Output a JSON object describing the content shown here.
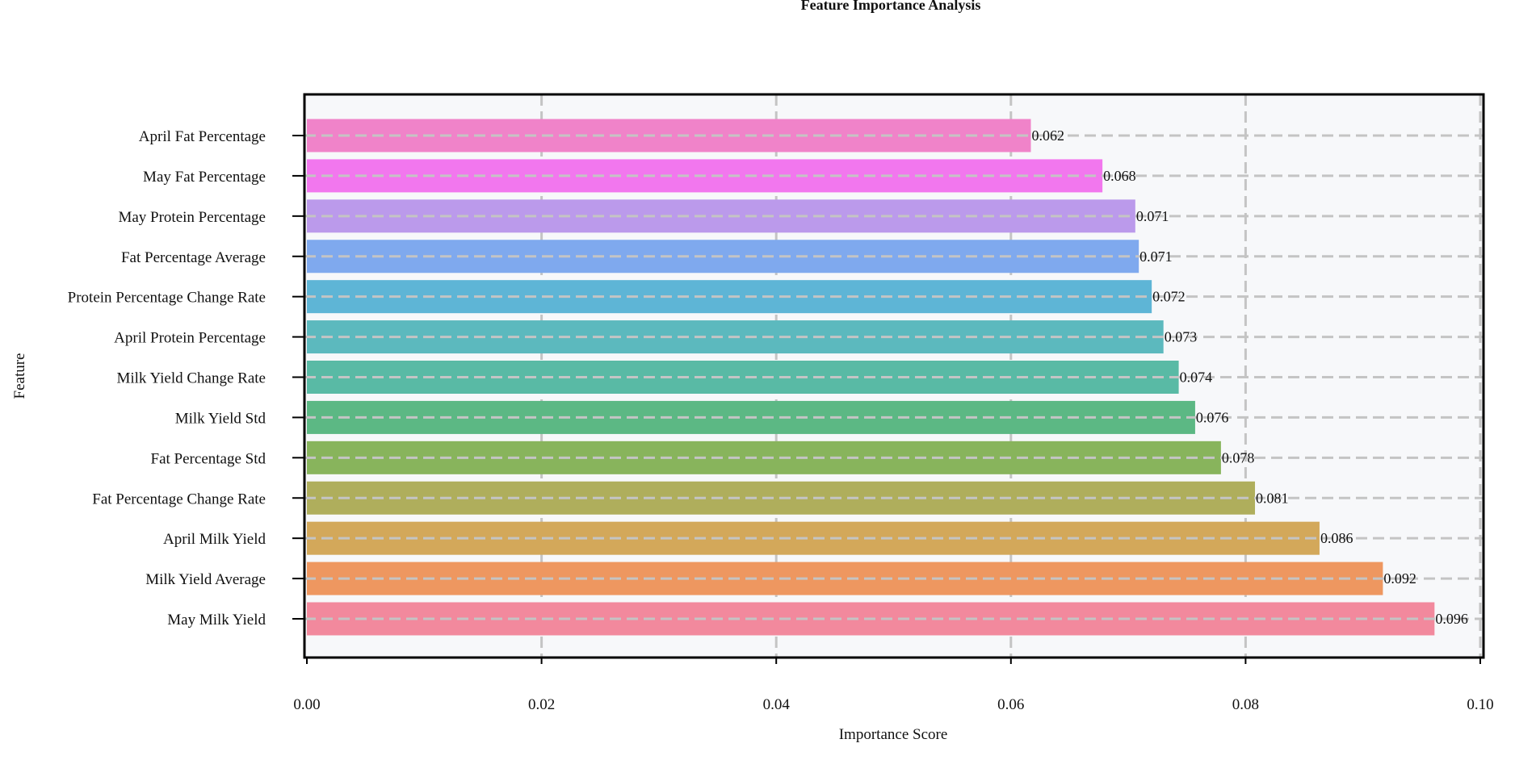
{
  "chart_data": {
    "type": "bar",
    "orientation": "horizontal",
    "title": "Feature Importance Analysis",
    "xlabel": "Importance Score",
    "ylabel": "Feature",
    "xlim": [
      0,
      0.1
    ],
    "xticks": [
      "0.00",
      "0.02",
      "0.04",
      "0.06",
      "0.08",
      "0.10"
    ],
    "grid": true,
    "categories": [
      "April Fat Percentage",
      "May Fat Percentage",
      "May Protein Percentage",
      "Fat Percentage Average",
      "Protein Percentage Change Rate",
      "April Protein Percentage",
      "Milk Yield Change Rate",
      "Milk Yield Std",
      "Fat Percentage Std",
      "Fat Percentage Change Rate",
      "April Milk Yield",
      "Milk Yield Average",
      "May Milk Yield"
    ],
    "values": [
      0.0617,
      0.0678,
      0.0706,
      0.0709,
      0.072,
      0.073,
      0.0743,
      0.0757,
      0.0779,
      0.0808,
      0.0863,
      0.0917,
      0.0961
    ],
    "value_labels": [
      "0.062",
      "0.068",
      "0.071",
      "0.071",
      "0.072",
      "0.073",
      "0.074",
      "0.076",
      "0.078",
      "0.081",
      "0.086",
      "0.092",
      "0.096"
    ],
    "colors": [
      "#F083C9",
      "#F277EE",
      "#BB9AEB",
      "#7FA9EE",
      "#5EB5D6",
      "#5CB9BE",
      "#59BAA5",
      "#5CB884",
      "#88B45C",
      "#AFAE5C",
      "#D3A85A",
      "#EE9760",
      "#F2899D"
    ],
    "plot_background": "#F7F8FA"
  }
}
